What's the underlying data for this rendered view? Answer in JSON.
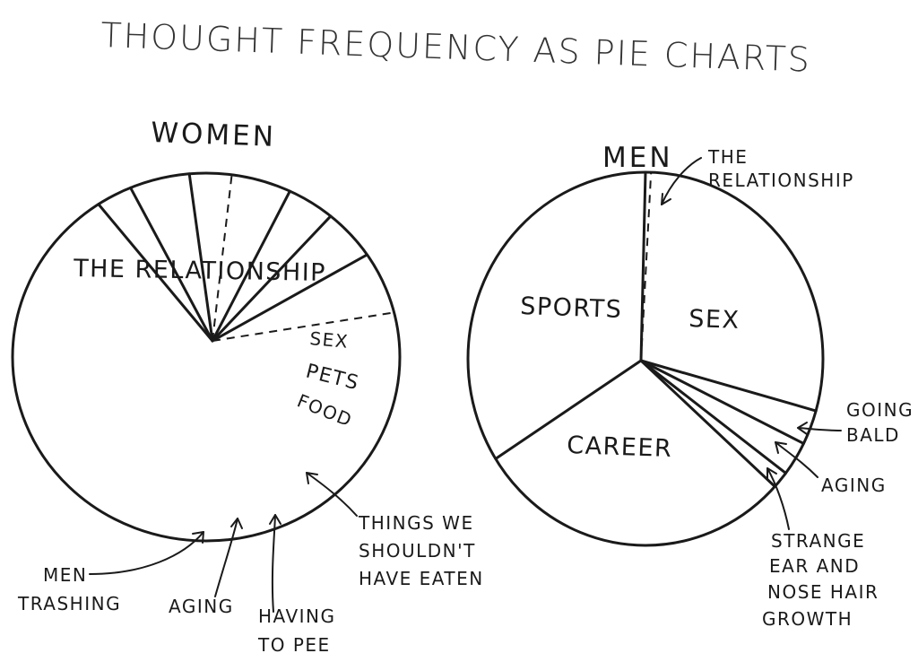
{
  "title": "THOUGHT FREQUENCY AS PIE CHARTS",
  "chart_data": [
    {
      "type": "pie",
      "title": "WOMEN",
      "labels": [
        "THE RELATIONSHIP",
        "SEX",
        "PETS",
        "FOOD",
        "THINGS WE SHOULDN'T HAVE EATEN",
        "HAVING TO PEE",
        "AGING",
        "MEN TRASHING"
      ],
      "values": [
        69.5,
        3.0,
        5.0,
        3.5,
        5.0,
        4.0,
        4.5,
        5.5
      ]
    },
    {
      "type": "pie",
      "title": "MEN",
      "labels": [
        "THE RELATIONSHIP",
        "SEX",
        "GOING BALD",
        "AGING",
        "STRANGE EAR AND NOSE HAIR GROWTH",
        "CAREER",
        "SPORTS"
      ],
      "values": [
        0.5,
        29.0,
        3.0,
        3.0,
        1.5,
        29.0,
        34.0
      ]
    }
  ]
}
